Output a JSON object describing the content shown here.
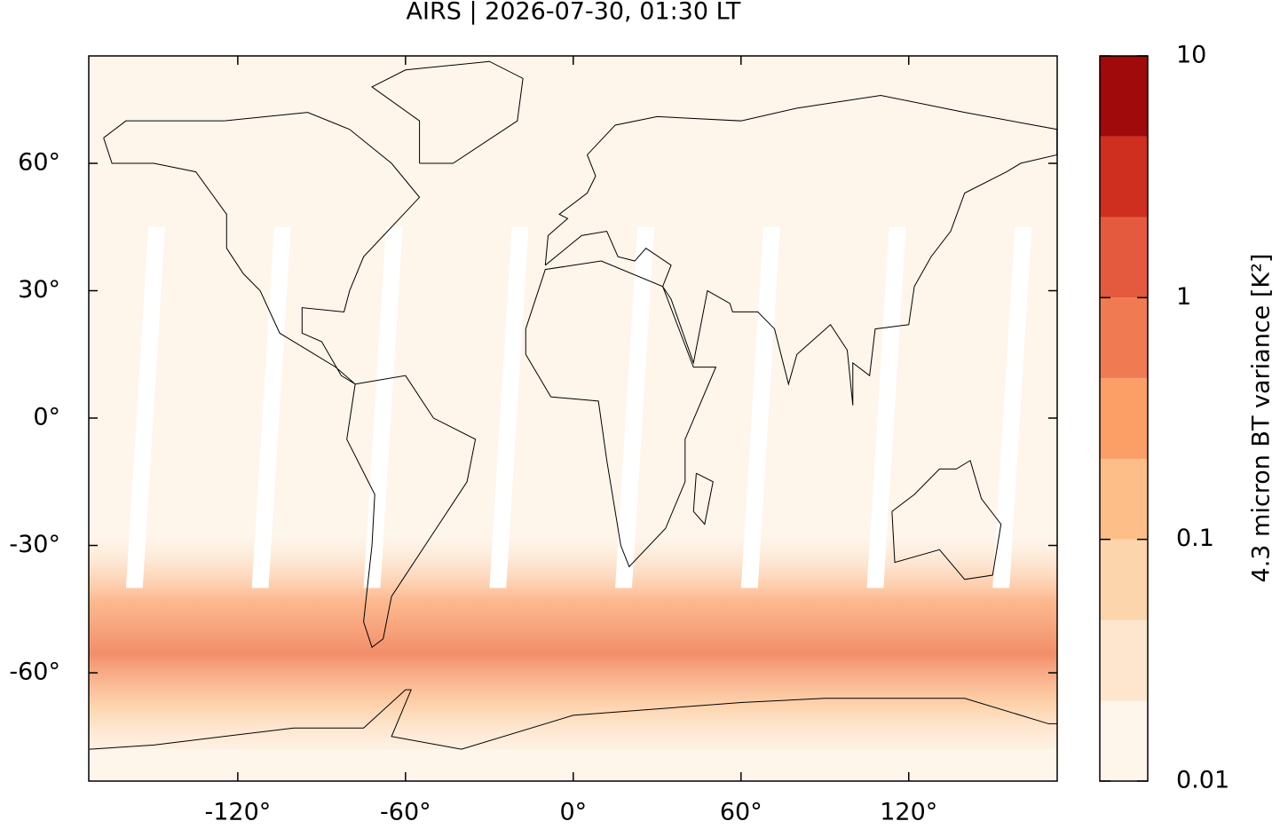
{
  "chart_data": {
    "type": "map",
    "title": "AIRS | 2026-07-30, 01:30 LT",
    "xlim": [
      -173.3,
      173.1
    ],
    "ylim": [
      -85.5,
      85.3
    ],
    "xticks": [
      {
        "value": -120,
        "label": "-120°"
      },
      {
        "value": -60,
        "label": "-60°"
      },
      {
        "value": 0,
        "label": "0°"
      },
      {
        "value": 60,
        "label": "60°"
      },
      {
        "value": 120,
        "label": "120°"
      }
    ],
    "yticks": [
      {
        "value": 60,
        "label": "60°"
      },
      {
        "value": 30,
        "label": "30°"
      },
      {
        "value": 0,
        "label": "0°"
      },
      {
        "value": -30,
        "label": "-30°"
      },
      {
        "value": -60,
        "label": "-60°"
      }
    ],
    "colorbar": {
      "label": "4.3 micron BT variance [K²]",
      "scale": "log",
      "lim": [
        0.01,
        10
      ],
      "ticks": [
        0.01,
        0.1,
        1,
        10
      ],
      "levels": [
        0.01,
        0.0215,
        0.0464,
        0.1,
        0.215,
        0.464,
        1,
        2.15,
        4.64,
        10
      ],
      "colors": [
        "#fef5eb",
        "#fde6cd",
        "#fdd5ac",
        "#fdbf87",
        "#fc9f67",
        "#f07b52",
        "#e45a3e",
        "#cf2f1f",
        "#a00a0a"
      ]
    }
  }
}
